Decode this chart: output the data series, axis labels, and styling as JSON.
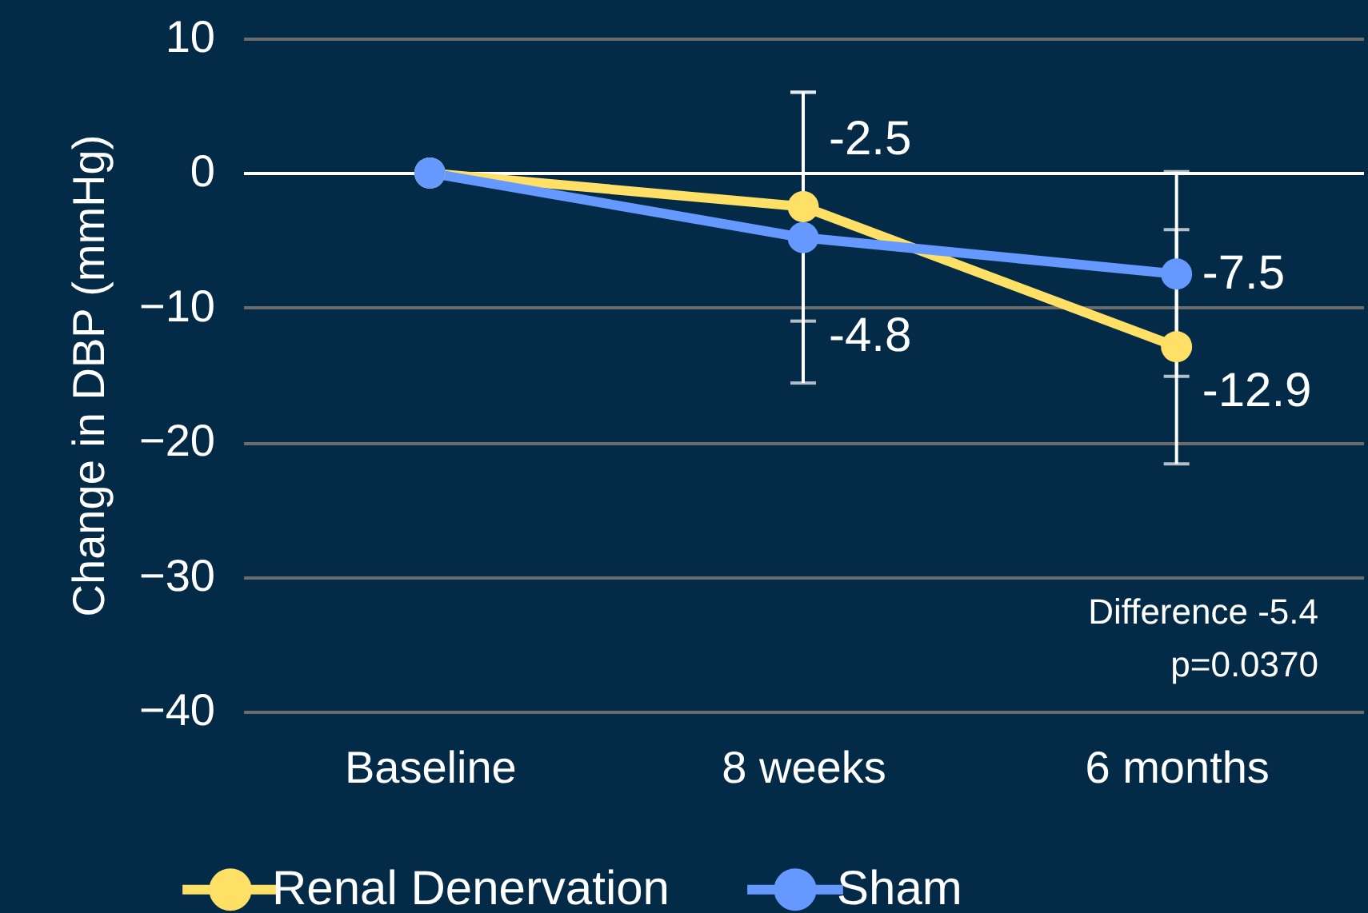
{
  "chart_data": {
    "type": "line",
    "ylabel": "Change in DBP (mmHg)",
    "categories": [
      "Baseline",
      "8 weeks",
      "6 months"
    ],
    "series": [
      {
        "name": "Renal Denervation",
        "color": "#ffe066",
        "values": [
          0,
          -2.5,
          -12.9
        ],
        "errors": [
          null,
          8.5,
          8.7
        ],
        "value_labels": [
          null,
          "-2.5",
          "-12.9"
        ]
      },
      {
        "name": "Sham",
        "color": "#6699ff",
        "values": [
          0,
          -4.8,
          -7.5
        ],
        "errors": [
          null,
          10.8,
          7.6
        ],
        "value_labels": [
          null,
          "-4.8",
          "-7.5"
        ]
      }
    ],
    "ylim": [
      -40,
      10
    ],
    "yticks": [
      -40,
      -30,
      -20,
      -10,
      0,
      10
    ],
    "grid": "y",
    "marker": "circle",
    "legend": "bottom",
    "annotations": [
      "Difference -5.4",
      "p=0.0370"
    ]
  }
}
